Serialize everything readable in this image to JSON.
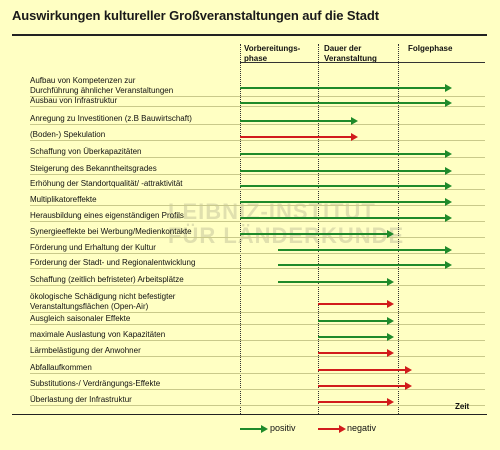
{
  "title": "Auswirkungen kultureller Großveranstaltungen auf die Stadt",
  "phases": [
    "Vorbereitungs-\nphase",
    "Dauer der\nVeranstaltung",
    "Folgephase"
  ],
  "rows": [
    {
      "label": "Aufbau von Kompetenzen zur\nDurchführung ähnlicher Veranstaltungen",
      "effect": "positive",
      "start_phase": 1,
      "end_phase": 3
    },
    {
      "label": "Ausbau von Infrastruktur",
      "effect": "positive",
      "start_phase": 1,
      "end_phase": 3
    },
    {
      "label": "Anregung zu Investitionen (z.B Bauwirtschaft)",
      "effect": "positive",
      "start_phase": 1,
      "end_phase": 2
    },
    {
      "label": "(Boden-) Spekulation",
      "effect": "negative",
      "start_phase": 1,
      "end_phase": 2
    },
    {
      "label": "Schaffung von Überkapazitäten",
      "effect": "positive",
      "start_phase": 1,
      "end_phase": 3
    },
    {
      "label": "Steigerung des Bekanntheitsgrades",
      "effect": "positive",
      "start_phase": 1,
      "end_phase": 3
    },
    {
      "label": "Erhöhung der Standortqualität/ -attraktivität",
      "effect": "positive",
      "start_phase": 1,
      "end_phase": 3
    },
    {
      "label": "Multiplikatoreffekte",
      "effect": "positive",
      "start_phase": 1,
      "end_phase": 3
    },
    {
      "label": "Herausbildung eines eigenständigen Profils",
      "effect": "positive",
      "start_phase": 1,
      "end_phase": 3
    },
    {
      "label": "Synergieeffekte bei Werbung/Medienkontakte",
      "effect": "positive",
      "start_phase": 1,
      "end_phase": 2
    },
    {
      "label": "Förderung und Erhaltung der Kultur",
      "effect": "positive",
      "start_phase": 1,
      "end_phase": 3
    },
    {
      "label": "Förderung der Stadt- und Regionalentwicklung",
      "effect": "positive",
      "start_phase": 1,
      "end_phase": 3
    },
    {
      "label": "Schaffung (zeitlich befristeter) Arbeitsplätze",
      "effect": "positive",
      "start_phase": 1,
      "end_phase": 2
    },
    {
      "label": "ökologische Schädigung nicht befestigter\nVeranstaltungsflächen (Open-Air)",
      "effect": "negative",
      "start_phase": 2,
      "end_phase": 2
    },
    {
      "label": "Ausgleich saisonaler Effekte",
      "effect": "positive",
      "start_phase": 2,
      "end_phase": 2
    },
    {
      "label": "maximale Auslastung von Kapazitäten",
      "effect": "positive",
      "start_phase": 2,
      "end_phase": 2
    },
    {
      "label": "Lärmbelästigung der Anwohner",
      "effect": "negative",
      "start_phase": 2,
      "end_phase": 2
    },
    {
      "label": "Abfallaufkommen",
      "effect": "negative",
      "start_phase": 2,
      "end_phase": 2
    },
    {
      "label": "Substitutions-/ Verdrängungs-Effekte",
      "effect": "negative",
      "start_phase": 2,
      "end_phase": 2
    },
    {
      "label": "Überlastung der Infrastruktur",
      "effect": "negative",
      "start_phase": 2,
      "end_phase": 2
    }
  ],
  "time_axis_label": "Zeit",
  "legend": {
    "positive_label": "positiv",
    "negative_label": "negativ"
  },
  "watermark": "LEIBNIZ-INSTITUT\nFÜR LÄNDERKUNDE",
  "colors": {
    "background": "#ffffc3",
    "positive": "#1f8a2a",
    "negative": "#d11b1b"
  }
}
